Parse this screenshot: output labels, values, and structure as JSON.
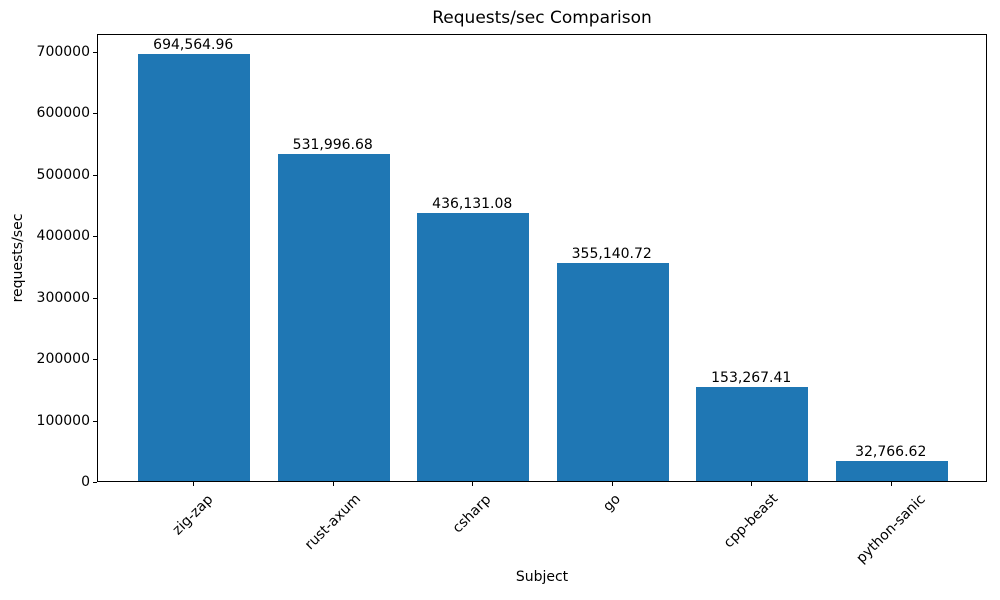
{
  "chart_data": {
    "type": "bar",
    "title": "Requests/sec Comparison",
    "xlabel": "Subject",
    "ylabel": "requests/sec",
    "categories": [
      "zig-zap",
      "rust-axum",
      "csharp",
      "go",
      "cpp-beast",
      "python-sanic"
    ],
    "values": [
      694564.96,
      531996.68,
      436131.08,
      355140.72,
      153267.41,
      32766.62
    ],
    "bar_labels": [
      "694,564.96",
      "531,996.68",
      "436,131.08",
      "355,140.72",
      "153,267.41",
      "32,766.62"
    ],
    "bar_color": "#1f77b4",
    "axis_color": "#000000",
    "ylim": [
      0,
      729293.21
    ],
    "yticks": [
      0,
      100000,
      200000,
      300000,
      400000,
      500000,
      600000,
      700000
    ],
    "ytick_labels": [
      "0",
      "100000",
      "200000",
      "300000",
      "400000",
      "500000",
      "600000",
      "700000"
    ],
    "xtick_rotation": 45,
    "grid": false,
    "legend": null
  }
}
